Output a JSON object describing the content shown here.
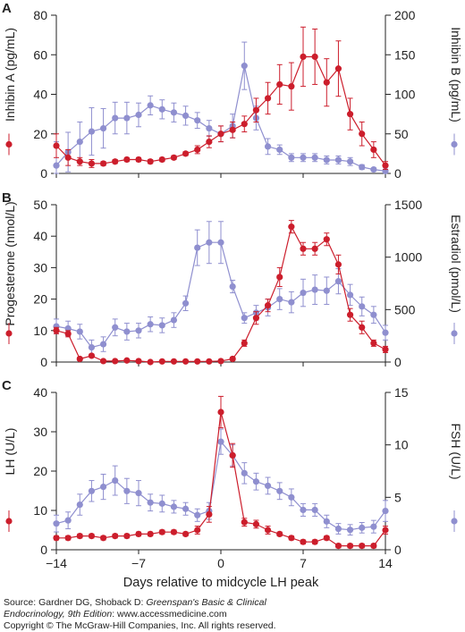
{
  "x_axis": {
    "label": "Days relative to midcycle LH peak",
    "ticks": [
      -14,
      -7,
      0,
      7,
      14
    ],
    "tick_labels": [
      "−14",
      "−7",
      "0",
      "7",
      "14"
    ]
  },
  "colors": {
    "red": "#cc1e2c",
    "purple": "#8f8fcf",
    "axis": "#222222"
  },
  "source": {
    "line1_prefix": "Source: Gardner DG, Shoback D: ",
    "line1_title": "Greenspan's Basic & Clinical",
    "line2_title": "Endocrinology, 9th Edition",
    "line2_suffix": ": www.accessmedicine.com",
    "line3": "Copyright © The McGraw-Hill Companies, Inc. All rights reserved."
  },
  "chart_data": [
    {
      "type": "line",
      "panel_label": "A",
      "x": [
        -14,
        -13,
        -12,
        -11,
        -10,
        -9,
        -8,
        -7,
        -6,
        -5,
        -4,
        -3,
        -2,
        -1,
        0,
        1,
        2,
        3,
        4,
        5,
        6,
        7,
        8,
        9,
        10,
        11,
        12,
        13,
        14
      ],
      "left_axis": {
        "label": "Inhibin A (pg/mL)",
        "ylim": [
          0,
          80
        ],
        "ticks": [
          0,
          20,
          40,
          60,
          80
        ]
      },
      "right_axis": {
        "label": "Inhibin B (pg/mL)",
        "ylim": [
          0,
          200
        ],
        "ticks": [
          0,
          50,
          100,
          150,
          200
        ]
      },
      "series": [
        {
          "axis": "left",
          "color": "#cc1e2c",
          "values": [
            14,
            8,
            6,
            5,
            5,
            6,
            7,
            7,
            6,
            7,
            8,
            10,
            12,
            16,
            20,
            22,
            25,
            32,
            38,
            45,
            44,
            59,
            59,
            46,
            53,
            30,
            20,
            12,
            4
          ],
          "errors": [
            6,
            4,
            2,
            2,
            1,
            1,
            1,
            1,
            1,
            1,
            1,
            1,
            2,
            3,
            4,
            4,
            4,
            6,
            8,
            10,
            12,
            15,
            14,
            12,
            14,
            8,
            6,
            4,
            2
          ]
        },
        {
          "axis": "right",
          "color": "#8f8fcf",
          "values": [
            10,
            27,
            40,
            53,
            57,
            70,
            70,
            74,
            86,
            81,
            77,
            73,
            67,
            57,
            50,
            60,
            136,
            70,
            34,
            30,
            20,
            20,
            20,
            17,
            17,
            15,
            8,
            5,
            3
          ],
          "errors": [
            30,
            25,
            25,
            30,
            25,
            20,
            20,
            15,
            12,
            12,
            12,
            12,
            10,
            10,
            10,
            15,
            30,
            15,
            10,
            6,
            5,
            5,
            5,
            5,
            5,
            5,
            3,
            2,
            2
          ]
        }
      ]
    },
    {
      "type": "line",
      "panel_label": "B",
      "x": [
        -14,
        -13,
        -12,
        -11,
        -10,
        -9,
        -8,
        -7,
        -6,
        -5,
        -4,
        -3,
        -2,
        -1,
        0,
        1,
        2,
        3,
        4,
        5,
        6,
        7,
        8,
        9,
        10,
        11,
        12,
        13,
        14
      ],
      "left_axis": {
        "label": "Progesterone (nmol/L)",
        "ylim": [
          0,
          50
        ],
        "ticks": [
          0,
          10,
          20,
          30,
          40,
          50
        ]
      },
      "right_axis": {
        "label": "Estradiol (pmol/L)",
        "ylim": [
          0,
          1500
        ],
        "ticks": [
          0,
          500,
          1000,
          1500
        ]
      },
      "series": [
        {
          "axis": "left",
          "color": "#cc1e2c",
          "values": [
            10,
            9,
            1,
            2,
            0.3,
            0.3,
            0.5,
            0.3,
            0,
            0.2,
            0.2,
            0.2,
            0.2,
            0.2,
            0.3,
            1,
            6,
            14,
            18,
            27,
            43,
            36,
            36,
            39,
            31,
            15,
            11,
            6,
            4
          ],
          "errors": [
            1,
            1,
            0.5,
            0.5,
            0.3,
            0.3,
            0.3,
            0.3,
            0.2,
            0.2,
            0.2,
            0.2,
            0.2,
            0.2,
            0.2,
            0.5,
            1,
            2,
            2,
            3,
            2,
            2,
            2,
            2,
            3,
            2,
            2,
            1,
            1
          ]
        },
        {
          "axis": "right",
          "color": "#8f8fcf",
          "values": [
            340,
            320,
            290,
            140,
            170,
            330,
            290,
            300,
            360,
            350,
            400,
            560,
            1090,
            1140,
            1140,
            720,
            420,
            470,
            520,
            600,
            570,
            660,
            690,
            680,
            770,
            640,
            530,
            450,
            280
          ],
          "errors": [
            70,
            70,
            70,
            70,
            70,
            80,
            80,
            70,
            70,
            70,
            70,
            70,
            170,
            200,
            200,
            60,
            50,
            70,
            80,
            100,
            100,
            130,
            140,
            130,
            120,
            100,
            90,
            80,
            70
          ]
        }
      ]
    },
    {
      "type": "line",
      "panel_label": "C",
      "x": [
        -14,
        -13,
        -12,
        -11,
        -10,
        -9,
        -8,
        -7,
        -6,
        -5,
        -4,
        -3,
        -2,
        -1,
        0,
        1,
        2,
        3,
        4,
        5,
        6,
        7,
        8,
        9,
        10,
        11,
        12,
        13,
        14
      ],
      "left_axis": {
        "label": "LH (U/L)",
        "ylim": [
          0,
          40
        ],
        "ticks": [
          0,
          10,
          20,
          30,
          40
        ]
      },
      "right_axis": {
        "label": "FSH (U/L)",
        "ylim": [
          0,
          15
        ],
        "ticks": [
          0,
          5,
          10,
          15
        ]
      },
      "series": [
        {
          "axis": "left",
          "color": "#cc1e2c",
          "values": [
            3,
            3,
            3.5,
            3.5,
            3,
            3.5,
            3.5,
            4,
            4,
            4.5,
            4.5,
            4,
            5,
            9,
            35,
            24,
            7,
            6.5,
            5,
            4,
            3,
            2,
            2,
            3,
            1,
            1,
            1,
            1,
            5
          ],
          "errors": [
            0.5,
            0.5,
            0.5,
            0.5,
            0.5,
            0.5,
            0.5,
            0.5,
            0.5,
            0.5,
            0.5,
            0.5,
            1,
            2,
            4,
            3,
            1,
            1,
            1,
            0.5,
            0.5,
            0.5,
            0.5,
            0.5,
            0.5,
            0.5,
            0.5,
            0.5,
            1
          ]
        },
        {
          "axis": "right",
          "color": "#8f8fcf",
          "values": [
            2.5,
            2.8,
            4.3,
            5.6,
            6,
            6.6,
            5.6,
            5.4,
            4.5,
            4.4,
            4.1,
            3.9,
            3.3,
            3.7,
            10.3,
            9,
            7.3,
            6.5,
            6.1,
            5.6,
            5,
            3.8,
            3.8,
            2.7,
            2,
            1.9,
            2.1,
            2.2,
            3.7
          ],
          "errors": [
            0.8,
            0.8,
            1,
            1,
            1.2,
            1.4,
            1.2,
            1.2,
            0.8,
            0.8,
            0.6,
            0.6,
            0.6,
            0.8,
            1.2,
            1,
            1,
            0.8,
            0.8,
            0.8,
            0.8,
            0.6,
            0.6,
            0.6,
            0.5,
            0.5,
            0.5,
            0.6,
            1
          ]
        }
      ]
    }
  ]
}
